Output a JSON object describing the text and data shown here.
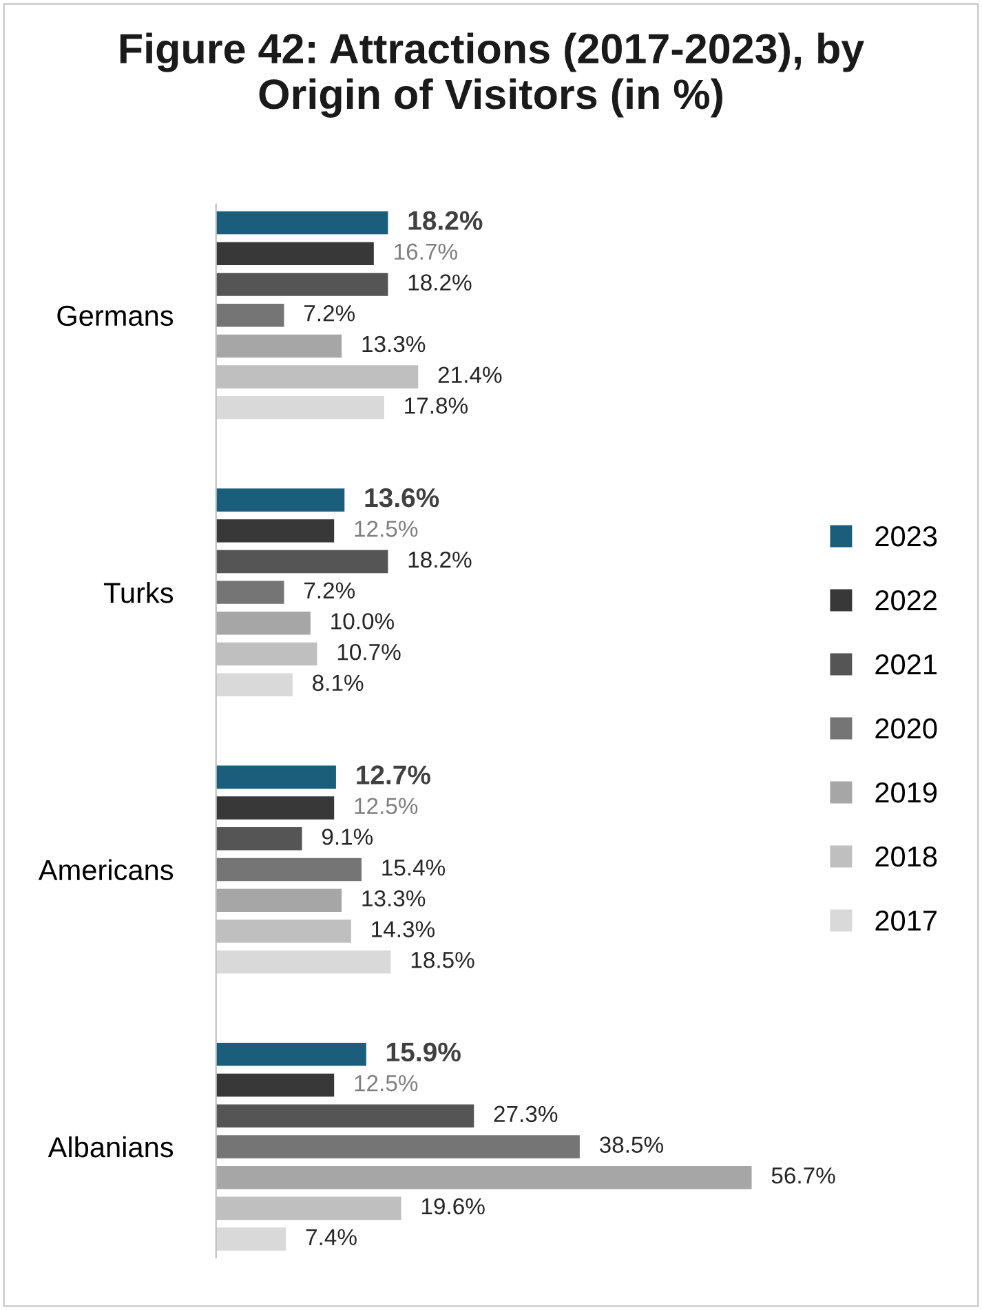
{
  "chart_data": {
    "type": "bar",
    "orientation": "horizontal",
    "title": "Figure 42: Attractions (2017-2023), by\nOrigin of Visitors (in %)",
    "categories": [
      "Germans",
      "Turks",
      "Americans",
      "Albanians"
    ],
    "series": [
      {
        "name": "2023",
        "color": "#1b5e7b",
        "values": [
          18.2,
          13.6,
          12.7,
          15.9
        ],
        "value_labels": [
          "18.2%",
          "13.6%",
          "12.7%",
          "15.9%"
        ]
      },
      {
        "name": "2022",
        "color": "#383838",
        "values": [
          16.7,
          12.5,
          12.5,
          12.5
        ],
        "value_labels": [
          "16.7%",
          "12.5%",
          "12.5%",
          "12.5%"
        ]
      },
      {
        "name": "2021",
        "color": "#555555",
        "values": [
          18.2,
          18.2,
          9.1,
          27.3
        ],
        "value_labels": [
          "18.2%",
          "18.2%",
          "9.1%",
          "27.3%"
        ]
      },
      {
        "name": "2020",
        "color": "#757575",
        "values": [
          7.2,
          7.2,
          15.4,
          38.5
        ],
        "value_labels": [
          "7.2%",
          "7.2%",
          "15.4%",
          "38.5%"
        ]
      },
      {
        "name": "2019",
        "color": "#a6a6a6",
        "values": [
          13.3,
          10.0,
          13.3,
          56.7
        ],
        "value_labels": [
          "13.3%",
          "10.0%",
          "13.3%",
          "56.7%"
        ]
      },
      {
        "name": "2018",
        "color": "#bfbfbf",
        "values": [
          21.4,
          10.7,
          14.3,
          19.6
        ],
        "value_labels": [
          "21.4%",
          "10.7%",
          "14.3%",
          "19.6%"
        ]
      },
      {
        "name": "2017",
        "color": "#d9d9d9",
        "values": [
          17.8,
          8.1,
          18.5,
          7.4
        ],
        "value_labels": [
          "17.8%",
          "8.1%",
          "18.5%",
          "7.4%"
        ]
      }
    ],
    "legend": "right"
  }
}
